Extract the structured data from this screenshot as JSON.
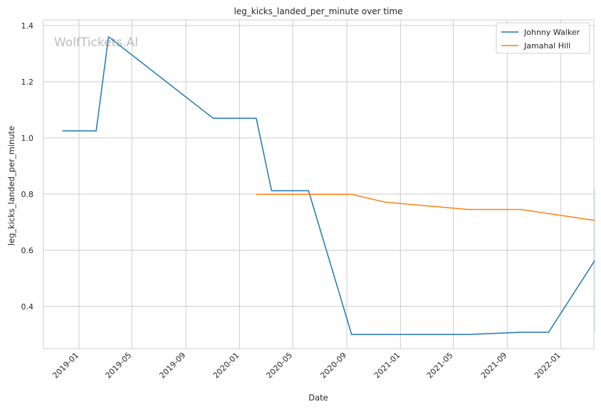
{
  "chart_data": {
    "type": "line",
    "title": "leg_kicks_landed_per_minute over time",
    "xlabel": "Date",
    "ylabel": "leg_kicks_landed_per_minute",
    "watermark": "WolfTickets.AI",
    "x_ticks": [
      "2019-01",
      "2019-05",
      "2019-09",
      "2020-01",
      "2020-05",
      "2020-09",
      "2021-01",
      "2021-05",
      "2021-09",
      "2022-01"
    ],
    "y_ticks": [
      "0.4",
      "0.6",
      "0.8",
      "1.0",
      "1.2",
      "1.4"
    ],
    "xlim": [
      "2018-10-12",
      "2022-03-17"
    ],
    "ylim": [
      0.25,
      1.42
    ],
    "grid": true,
    "legend_position": "top-right",
    "series": [
      {
        "name": "Johnny Walker",
        "color": "#1f77b4",
        "x": [
          "2018-11-24",
          "2019-02-09",
          "2019-03-09",
          "2019-11-02",
          "2020-02-08",
          "2020-03-14",
          "2020-06-06",
          "2020-09-12",
          "2021-06-05",
          "2021-10-02",
          "2021-12-04",
          "2022-03-19"
        ],
        "y": [
          1.025,
          1.025,
          1.36,
          1.07,
          1.07,
          0.812,
          0.812,
          0.3,
          0.3,
          0.308,
          0.308,
          0.563
        ]
      },
      {
        "name": "Jamahal Hill",
        "color": "#ff7f0e",
        "x": [
          "2020-02-08",
          "2020-09-12",
          "2020-11-28",
          "2021-06-05",
          "2021-10-02",
          "2022-03-19"
        ],
        "y": [
          0.799,
          0.799,
          0.771,
          0.745,
          0.745,
          0.706
        ]
      }
    ]
  }
}
